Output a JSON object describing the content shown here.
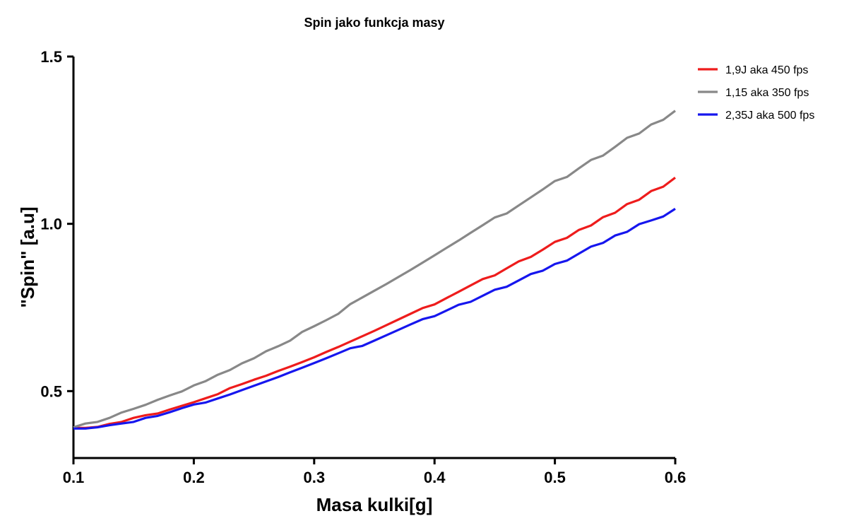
{
  "chart_data": {
    "type": "line",
    "title": "Spin jako funkcja masy",
    "xlabel": "Masa kulki[g]",
    "ylabel": "\"Spin\" [a.u]",
    "xlim": [
      0.1,
      0.6
    ],
    "ylim": [
      0.3,
      1.5
    ],
    "x_ticks": [
      0.1,
      0.2,
      0.3,
      0.4,
      0.5,
      0.6
    ],
    "x_tick_labels": [
      "0.1",
      "0.2",
      "0.3",
      "0.4",
      "0.5",
      "0.6"
    ],
    "y_ticks": [
      0.5,
      1.0,
      1.5
    ],
    "y_tick_labels": [
      "0.5",
      "1.0",
      "1.5"
    ],
    "grid": false,
    "legend_position": "top-right",
    "x": [
      0.1,
      0.11,
      0.12,
      0.13,
      0.14,
      0.15,
      0.16,
      0.17,
      0.18,
      0.19,
      0.2,
      0.21,
      0.22,
      0.23,
      0.24,
      0.25,
      0.26,
      0.27,
      0.28,
      0.29,
      0.3,
      0.31,
      0.32,
      0.33,
      0.34,
      0.35,
      0.36,
      0.37,
      0.38,
      0.39,
      0.4,
      0.41,
      0.42,
      0.43,
      0.44,
      0.45,
      0.46,
      0.47,
      0.48,
      0.49,
      0.5,
      0.51,
      0.52,
      0.53,
      0.54,
      0.55,
      0.56,
      0.57,
      0.58,
      0.59,
      0.6
    ],
    "series": [
      {
        "name": "1,9J aka 450 fps",
        "color": "#ee1c1c",
        "values": [
          0.39,
          0.39,
          0.393,
          0.402,
          0.408,
          0.42,
          0.428,
          0.433,
          0.445,
          0.456,
          0.467,
          0.479,
          0.491,
          0.509,
          0.521,
          0.534,
          0.546,
          0.56,
          0.573,
          0.587,
          0.601,
          0.617,
          0.632,
          0.648,
          0.664,
          0.68,
          0.697,
          0.714,
          0.731,
          0.748,
          0.759,
          0.778,
          0.797,
          0.816,
          0.835,
          0.846,
          0.867,
          0.888,
          0.901,
          0.923,
          0.946,
          0.958,
          0.982,
          0.995,
          1.02,
          1.033,
          1.059,
          1.072,
          1.098,
          1.111,
          1.138
        ]
      },
      {
        "name": "1,15 aka 350 fps",
        "color": "#888888",
        "values": [
          0.392,
          0.403,
          0.408,
          0.42,
          0.436,
          0.447,
          0.459,
          0.474,
          0.487,
          0.499,
          0.517,
          0.53,
          0.549,
          0.563,
          0.583,
          0.598,
          0.619,
          0.634,
          0.651,
          0.677,
          0.694,
          0.712,
          0.731,
          0.76,
          0.78,
          0.8,
          0.82,
          0.841,
          0.862,
          0.884,
          0.906,
          0.928,
          0.95,
          0.973,
          0.996,
          1.019,
          1.031,
          1.055,
          1.079,
          1.103,
          1.128,
          1.14,
          1.166,
          1.191,
          1.204,
          1.23,
          1.257,
          1.27,
          1.297,
          1.311,
          1.338
        ]
      },
      {
        "name": "2,35J aka 500 fps",
        "color": "#1616ee",
        "values": [
          0.388,
          0.388,
          0.392,
          0.398,
          0.403,
          0.408,
          0.42,
          0.426,
          0.437,
          0.449,
          0.46,
          0.466,
          0.478,
          0.49,
          0.503,
          0.516,
          0.529,
          0.542,
          0.556,
          0.57,
          0.584,
          0.598,
          0.613,
          0.628,
          0.635,
          0.651,
          0.667,
          0.683,
          0.699,
          0.715,
          0.724,
          0.741,
          0.758,
          0.767,
          0.785,
          0.803,
          0.812,
          0.831,
          0.85,
          0.86,
          0.88,
          0.89,
          0.911,
          0.932,
          0.943,
          0.965,
          0.976,
          0.999,
          1.01,
          1.022,
          1.045
        ]
      }
    ]
  }
}
